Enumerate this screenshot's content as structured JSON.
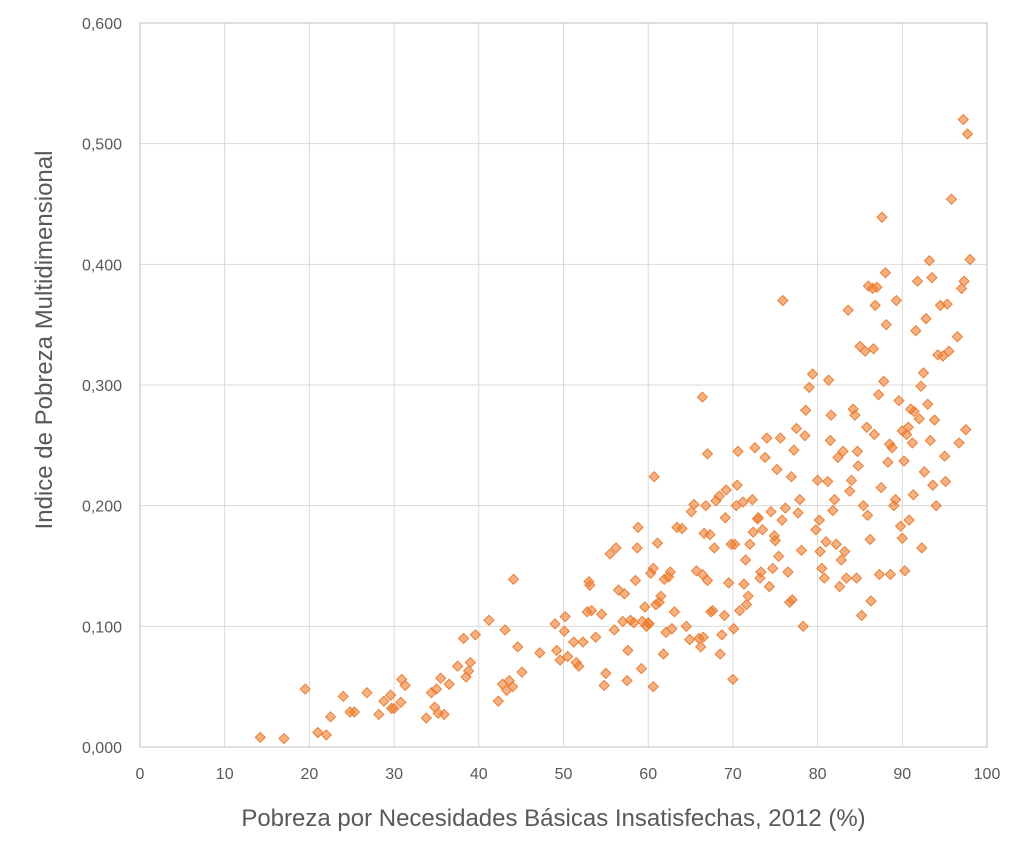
{
  "chart_data": {
    "type": "scatter",
    "xlabel": "Pobreza por Necesidades Básicas Insatisfechas, 2012 (%)",
    "ylabel": "Indice de Pobreza Multidimensional",
    "xlim": [
      0,
      100
    ],
    "ylim": [
      0,
      0.6
    ],
    "x_ticks": [
      "0",
      "10",
      "20",
      "30",
      "40",
      "50",
      "60",
      "70",
      "80",
      "90",
      "100"
    ],
    "y_ticks": [
      "0,000",
      "0,100",
      "0,200",
      "0,300",
      "0,400",
      "0,500",
      "0,600"
    ],
    "grid": true,
    "legend": "none",
    "marker": "diamond",
    "color": "#ed7d31",
    "points": [
      [
        14.2,
        0.008
      ],
      [
        17.0,
        0.007
      ],
      [
        19.5,
        0.048
      ],
      [
        21.0,
        0.012
      ],
      [
        22.0,
        0.01
      ],
      [
        22.5,
        0.025
      ],
      [
        24.0,
        0.042
      ],
      [
        24.8,
        0.029
      ],
      [
        25.3,
        0.029
      ],
      [
        26.8,
        0.045
      ],
      [
        28.2,
        0.027
      ],
      [
        28.8,
        0.038
      ],
      [
        29.7,
        0.032
      ],
      [
        30.0,
        0.032
      ],
      [
        29.6,
        0.043
      ],
      [
        30.8,
        0.037
      ],
      [
        30.9,
        0.056
      ],
      [
        31.3,
        0.051
      ],
      [
        33.8,
        0.024
      ],
      [
        34.4,
        0.045
      ],
      [
        34.8,
        0.033
      ],
      [
        35.0,
        0.048
      ],
      [
        35.2,
        0.028
      ],
      [
        35.5,
        0.057
      ],
      [
        35.9,
        0.027
      ],
      [
        36.5,
        0.052
      ],
      [
        37.5,
        0.067
      ],
      [
        38.2,
        0.09
      ],
      [
        38.5,
        0.058
      ],
      [
        38.8,
        0.063
      ],
      [
        39.0,
        0.07
      ],
      [
        39.6,
        0.093
      ],
      [
        41.2,
        0.105
      ],
      [
        42.3,
        0.038
      ],
      [
        42.8,
        0.052
      ],
      [
        43.1,
        0.097
      ],
      [
        43.3,
        0.047
      ],
      [
        43.6,
        0.055
      ],
      [
        44.0,
        0.05
      ],
      [
        44.1,
        0.139
      ],
      [
        44.6,
        0.083
      ],
      [
        45.1,
        0.062
      ],
      [
        47.2,
        0.078
      ],
      [
        49.0,
        0.102
      ],
      [
        49.2,
        0.08
      ],
      [
        49.6,
        0.072
      ],
      [
        50.1,
        0.096
      ],
      [
        50.2,
        0.108
      ],
      [
        50.5,
        0.075
      ],
      [
        51.2,
        0.087
      ],
      [
        51.5,
        0.07
      ],
      [
        51.8,
        0.067
      ],
      [
        52.3,
        0.087
      ],
      [
        52.8,
        0.112
      ],
      [
        53.0,
        0.137
      ],
      [
        53.1,
        0.134
      ],
      [
        53.3,
        0.113
      ],
      [
        53.8,
        0.091
      ],
      [
        54.5,
        0.11
      ],
      [
        54.8,
        0.051
      ],
      [
        55.0,
        0.061
      ],
      [
        55.5,
        0.16
      ],
      [
        56.0,
        0.097
      ],
      [
        56.2,
        0.165
      ],
      [
        56.5,
        0.13
      ],
      [
        57.0,
        0.104
      ],
      [
        57.2,
        0.127
      ],
      [
        57.5,
        0.055
      ],
      [
        57.6,
        0.08
      ],
      [
        57.9,
        0.105
      ],
      [
        58.3,
        0.103
      ],
      [
        58.5,
        0.138
      ],
      [
        58.7,
        0.165
      ],
      [
        58.8,
        0.182
      ],
      [
        59.2,
        0.065
      ],
      [
        59.3,
        0.104
      ],
      [
        59.6,
        0.116
      ],
      [
        59.8,
        0.1
      ],
      [
        60.0,
        0.103
      ],
      [
        60.1,
        0.102
      ],
      [
        60.3,
        0.144
      ],
      [
        60.6,
        0.05
      ],
      [
        60.6,
        0.148
      ],
      [
        60.7,
        0.224
      ],
      [
        60.9,
        0.118
      ],
      [
        61.1,
        0.169
      ],
      [
        61.3,
        0.12
      ],
      [
        61.5,
        0.125
      ],
      [
        61.8,
        0.077
      ],
      [
        61.9,
        0.139
      ],
      [
        62.1,
        0.095
      ],
      [
        62.4,
        0.141
      ],
      [
        62.6,
        0.145
      ],
      [
        62.8,
        0.098
      ],
      [
        63.1,
        0.112
      ],
      [
        63.4,
        0.182
      ],
      [
        64.0,
        0.181
      ],
      [
        64.5,
        0.1
      ],
      [
        64.9,
        0.089
      ],
      [
        65.1,
        0.195
      ],
      [
        65.4,
        0.201
      ],
      [
        65.7,
        0.146
      ],
      [
        66.0,
        0.09
      ],
      [
        66.2,
        0.083
      ],
      [
        66.4,
        0.143
      ],
      [
        66.5,
        0.091
      ],
      [
        66.6,
        0.177
      ],
      [
        66.8,
        0.2
      ],
      [
        66.4,
        0.29
      ],
      [
        67.0,
        0.138
      ],
      [
        67.0,
        0.243
      ],
      [
        67.3,
        0.176
      ],
      [
        67.4,
        0.112
      ],
      [
        67.6,
        0.113
      ],
      [
        67.8,
        0.165
      ],
      [
        68.0,
        0.204
      ],
      [
        68.4,
        0.208
      ],
      [
        68.5,
        0.077
      ],
      [
        68.7,
        0.093
      ],
      [
        69.0,
        0.109
      ],
      [
        69.1,
        0.19
      ],
      [
        69.2,
        0.213
      ],
      [
        69.5,
        0.136
      ],
      [
        69.8,
        0.168
      ],
      [
        70.0,
        0.056
      ],
      [
        70.1,
        0.098
      ],
      [
        70.2,
        0.168
      ],
      [
        70.4,
        0.2
      ],
      [
        70.5,
        0.217
      ],
      [
        70.6,
        0.245
      ],
      [
        70.8,
        0.113
      ],
      [
        71.2,
        0.203
      ],
      [
        71.3,
        0.135
      ],
      [
        71.5,
        0.155
      ],
      [
        71.6,
        0.118
      ],
      [
        71.8,
        0.125
      ],
      [
        72.0,
        0.168
      ],
      [
        72.3,
        0.205
      ],
      [
        72.4,
        0.178
      ],
      [
        72.6,
        0.248
      ],
      [
        72.9,
        0.189
      ],
      [
        73.0,
        0.19
      ],
      [
        73.2,
        0.14
      ],
      [
        73.3,
        0.145
      ],
      [
        73.5,
        0.18
      ],
      [
        73.8,
        0.24
      ],
      [
        74.0,
        0.256
      ],
      [
        74.3,
        0.133
      ],
      [
        74.5,
        0.195
      ],
      [
        74.7,
        0.148
      ],
      [
        74.9,
        0.175
      ],
      [
        75.0,
        0.171
      ],
      [
        75.2,
        0.23
      ],
      [
        75.4,
        0.158
      ],
      [
        75.6,
        0.256
      ],
      [
        75.8,
        0.188
      ],
      [
        75.9,
        0.37
      ],
      [
        76.2,
        0.198
      ],
      [
        76.5,
        0.145
      ],
      [
        76.7,
        0.12
      ],
      [
        76.9,
        0.224
      ],
      [
        77.0,
        0.122
      ],
      [
        77.2,
        0.246
      ],
      [
        77.5,
        0.264
      ],
      [
        77.7,
        0.194
      ],
      [
        77.9,
        0.205
      ],
      [
        78.1,
        0.163
      ],
      [
        78.3,
        0.1
      ],
      [
        78.5,
        0.258
      ],
      [
        78.6,
        0.279
      ],
      [
        79.0,
        0.298
      ],
      [
        79.4,
        0.309
      ],
      [
        79.8,
        0.18
      ],
      [
        80.0,
        0.221
      ],
      [
        80.2,
        0.188
      ],
      [
        80.3,
        0.162
      ],
      [
        80.5,
        0.148
      ],
      [
        80.8,
        0.14
      ],
      [
        81.0,
        0.17
      ],
      [
        81.2,
        0.22
      ],
      [
        81.3,
        0.304
      ],
      [
        81.5,
        0.254
      ],
      [
        81.6,
        0.275
      ],
      [
        81.8,
        0.196
      ],
      [
        82.0,
        0.205
      ],
      [
        82.2,
        0.168
      ],
      [
        82.4,
        0.24
      ],
      [
        82.6,
        0.133
      ],
      [
        82.8,
        0.155
      ],
      [
        83.0,
        0.245
      ],
      [
        83.2,
        0.162
      ],
      [
        83.4,
        0.14
      ],
      [
        83.6,
        0.362
      ],
      [
        83.8,
        0.212
      ],
      [
        84.0,
        0.221
      ],
      [
        84.2,
        0.28
      ],
      [
        84.4,
        0.275
      ],
      [
        84.6,
        0.14
      ],
      [
        84.7,
        0.245
      ],
      [
        84.8,
        0.233
      ],
      [
        85.0,
        0.332
      ],
      [
        85.2,
        0.109
      ],
      [
        85.4,
        0.2
      ],
      [
        85.6,
        0.328
      ],
      [
        85.8,
        0.265
      ],
      [
        85.9,
        0.192
      ],
      [
        86.0,
        0.382
      ],
      [
        86.2,
        0.172
      ],
      [
        86.3,
        0.121
      ],
      [
        86.5,
        0.38
      ],
      [
        86.6,
        0.33
      ],
      [
        86.7,
        0.259
      ],
      [
        86.8,
        0.366
      ],
      [
        87.0,
        0.381
      ],
      [
        87.2,
        0.292
      ],
      [
        87.3,
        0.143
      ],
      [
        87.5,
        0.215
      ],
      [
        87.6,
        0.439
      ],
      [
        87.8,
        0.303
      ],
      [
        88.0,
        0.393
      ],
      [
        88.1,
        0.35
      ],
      [
        88.3,
        0.236
      ],
      [
        88.5,
        0.251
      ],
      [
        88.6,
        0.143
      ],
      [
        88.8,
        0.248
      ],
      [
        89.0,
        0.2
      ],
      [
        89.2,
        0.205
      ],
      [
        89.3,
        0.37
      ],
      [
        89.6,
        0.287
      ],
      [
        89.8,
        0.183
      ],
      [
        90.0,
        0.262
      ],
      [
        90.0,
        0.173
      ],
      [
        90.2,
        0.237
      ],
      [
        90.3,
        0.146
      ],
      [
        90.5,
        0.259
      ],
      [
        90.7,
        0.265
      ],
      [
        90.8,
        0.188
      ],
      [
        91.0,
        0.28
      ],
      [
        91.2,
        0.252
      ],
      [
        91.3,
        0.209
      ],
      [
        91.4,
        0.278
      ],
      [
        91.6,
        0.345
      ],
      [
        91.8,
        0.386
      ],
      [
        92.0,
        0.272
      ],
      [
        92.2,
        0.299
      ],
      [
        92.3,
        0.165
      ],
      [
        92.5,
        0.31
      ],
      [
        92.6,
        0.228
      ],
      [
        92.8,
        0.355
      ],
      [
        93.0,
        0.284
      ],
      [
        93.2,
        0.403
      ],
      [
        93.3,
        0.254
      ],
      [
        93.5,
        0.389
      ],
      [
        93.6,
        0.217
      ],
      [
        93.8,
        0.271
      ],
      [
        94.0,
        0.2
      ],
      [
        94.2,
        0.325
      ],
      [
        94.5,
        0.366
      ],
      [
        94.8,
        0.324
      ],
      [
        95.0,
        0.241
      ],
      [
        95.1,
        0.22
      ],
      [
        95.3,
        0.367
      ],
      [
        95.5,
        0.328
      ],
      [
        95.8,
        0.454
      ],
      [
        96.5,
        0.34
      ],
      [
        96.7,
        0.252
      ],
      [
        97.0,
        0.38
      ],
      [
        97.2,
        0.52
      ],
      [
        97.3,
        0.386
      ],
      [
        97.5,
        0.263
      ],
      [
        97.7,
        0.508
      ],
      [
        98.0,
        0.404
      ]
    ]
  }
}
